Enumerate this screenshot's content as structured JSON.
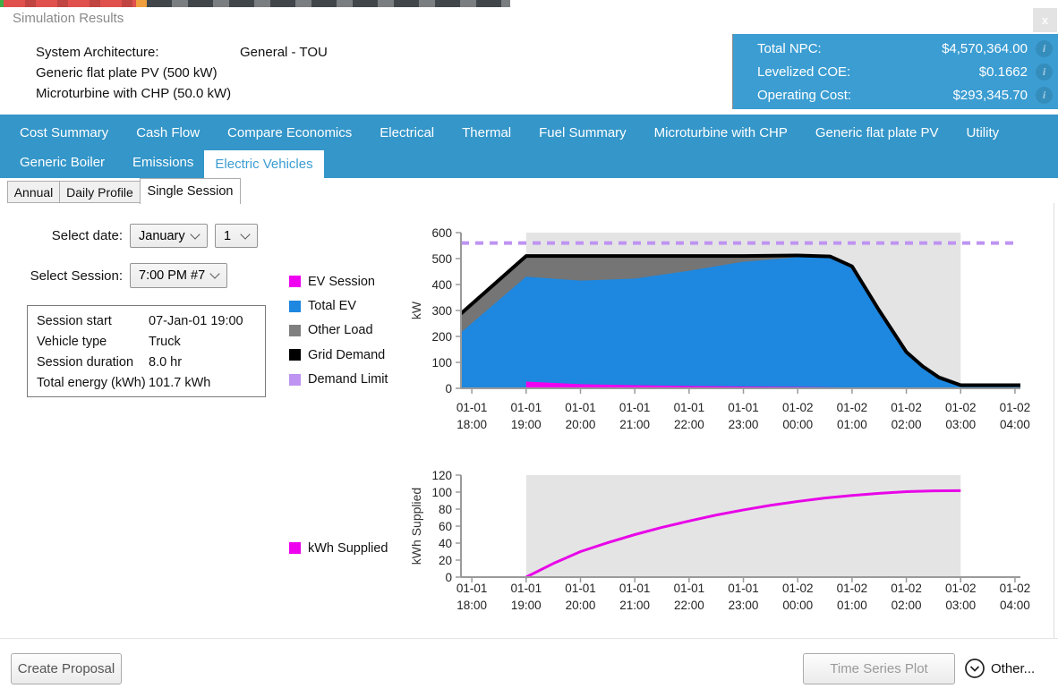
{
  "titlebar": {
    "title": "Simulation Results",
    "close_label": "x"
  },
  "header": {
    "architecture_label": "System Architecture:",
    "architecture_value": "General - TOU",
    "component_1": "Generic flat plate PV (500 kW)",
    "component_2": "Microturbine with CHP (50.0 kW)",
    "metrics": [
      {
        "label": "Total NPC:",
        "value": "$4,570,364.00",
        "icon": "info-icon"
      },
      {
        "label": "Levelized COE:",
        "value": "$0.1662",
        "icon": "info-icon"
      },
      {
        "label": "Operating Cost:",
        "value": "$293,345.70",
        "icon": "info-icon"
      }
    ]
  },
  "tabs": {
    "row1": [
      "Cost Summary",
      "Cash Flow",
      "Compare Economics",
      "Electrical",
      "Thermal",
      "Fuel Summary",
      "Microturbine with CHP",
      "Generic flat plate PV",
      "Utility"
    ],
    "row2": [
      "Generic Boiler",
      "Emissions"
    ],
    "selected": "Electric Vehicles"
  },
  "subtabs": {
    "annual": "Annual",
    "daily_profile": "Daily Profile",
    "selected": "Single Session"
  },
  "controls": {
    "date_label": "Select date:",
    "month_value": "January",
    "day_value": "1",
    "session_label": "Select Session:",
    "session_value": "7:00 PM #7"
  },
  "session_info": {
    "rows": [
      {
        "label": "Session start",
        "value": "07-Jan-01 19:00"
      },
      {
        "label": "Vehicle type",
        "value": "Truck"
      },
      {
        "label": "Session duration",
        "value": "8.0 hr"
      },
      {
        "label": "Total energy (kWh)",
        "value": "101.7 kWh"
      }
    ]
  },
  "legend_power": [
    {
      "label": "EV Session",
      "color": "#F000F0"
    },
    {
      "label": "Total EV",
      "color": "#1E87DF"
    },
    {
      "label": "Other Load",
      "color": "#7F7F7F"
    },
    {
      "label": "Grid Demand",
      "color": "#000000"
    },
    {
      "label": "Demand Limit",
      "color": "#BE93F2"
    }
  ],
  "legend_energy": [
    {
      "label": "kWh Supplied",
      "color": "#EE00EE"
    }
  ],
  "footer": {
    "create_proposal": "Create Proposal",
    "time_series_plot": "Time Series Plot",
    "other": "Other..."
  },
  "colors": {
    "accent_blue": "#3496c9",
    "metrics_blue": "#3b9dd2",
    "chart_blue": "#1E87DF",
    "magenta": "#F000F0",
    "gray_load": "#757575",
    "demand_limit_purple": "#BE93F2",
    "session_shading": "#E4E4E4"
  },
  "chart_data": [
    {
      "dom_id": "chart-power",
      "type": "area",
      "ylabel": "kW",
      "ylim": [
        0,
        600
      ],
      "yticks": [
        0,
        100,
        200,
        300,
        400,
        500,
        600
      ],
      "xlim": [
        17.8,
        28.1
      ],
      "xticks": [
        {
          "h": 18,
          "date": "01-01",
          "time": "18:00"
        },
        {
          "h": 19,
          "date": "01-01",
          "time": "19:00"
        },
        {
          "h": 20,
          "date": "01-01",
          "time": "20:00"
        },
        {
          "h": 21,
          "date": "01-01",
          "time": "21:00"
        },
        {
          "h": 22,
          "date": "01-01",
          "time": "22:00"
        },
        {
          "h": 23,
          "date": "01-01",
          "time": "23:00"
        },
        {
          "h": 24,
          "date": "01-02",
          "time": "00:00"
        },
        {
          "h": 25,
          "date": "01-02",
          "time": "01:00"
        },
        {
          "h": 26,
          "date": "01-02",
          "time": "02:00"
        },
        {
          "h": 27,
          "date": "01-02",
          "time": "03:00"
        },
        {
          "h": 28,
          "date": "01-02",
          "time": "04:00"
        }
      ],
      "session_region": {
        "from": 19,
        "to": 27,
        "color": "#E4E4E4"
      },
      "series": [
        {
          "name": "Other Load",
          "kind": "area",
          "color": "#757575",
          "points": [
            [
              17.8,
              288
            ],
            [
              19,
              510
            ],
            [
              23,
              510
            ],
            [
              24,
              512
            ],
            [
              24.6,
              508
            ],
            [
              25,
              470
            ],
            [
              25.5,
              300
            ],
            [
              26,
              140
            ],
            [
              26.3,
              85
            ],
            [
              26.6,
              42
            ],
            [
              27,
              12
            ],
            [
              28.1,
              12
            ]
          ]
        },
        {
          "name": "Total EV",
          "kind": "area",
          "color": "#1E87DF",
          "points": [
            [
              17.8,
              215
            ],
            [
              19,
              430
            ],
            [
              20,
              415
            ],
            [
              21,
              423
            ],
            [
              22,
              453
            ],
            [
              23,
              488
            ],
            [
              24,
              505
            ],
            [
              24.5,
              510
            ],
            [
              25,
              466
            ],
            [
              25.5,
              298
            ],
            [
              26,
              138
            ],
            [
              26.3,
              83
            ],
            [
              26.6,
              38
            ],
            [
              27,
              8
            ],
            [
              28.1,
              8
            ]
          ]
        },
        {
          "name": "EV Session",
          "kind": "area",
          "color": "#F000F0",
          "points": [
            [
              19,
              0
            ],
            [
              19,
              26
            ],
            [
              20,
              16
            ],
            [
              21,
              12
            ],
            [
              22,
              9
            ],
            [
              23,
              7
            ],
            [
              24,
              5
            ],
            [
              25,
              3
            ],
            [
              26,
              1.5
            ],
            [
              27,
              0.3
            ]
          ]
        },
        {
          "name": "Grid Demand",
          "kind": "line",
          "color": "#000000",
          "width": 4,
          "points": [
            [
              17.8,
              288
            ],
            [
              19,
              510
            ],
            [
              23,
              510
            ],
            [
              24,
              512
            ],
            [
              24.6,
              508
            ],
            [
              25,
              470
            ],
            [
              25.5,
              300
            ],
            [
              26,
              140
            ],
            [
              26.3,
              85
            ],
            [
              26.6,
              42
            ],
            [
              27,
              12
            ],
            [
              28.1,
              12
            ]
          ]
        },
        {
          "name": "Demand Limit",
          "kind": "hline",
          "color": "#BE93F2",
          "width": 4,
          "dash": "9 7",
          "value": 560
        }
      ]
    },
    {
      "dom_id": "chart-energy",
      "type": "line",
      "ylabel": "kWh Supplied",
      "ylim": [
        0,
        120
      ],
      "yticks": [
        0,
        20,
        40,
        60,
        80,
        100,
        120
      ],
      "xlim": [
        17.8,
        28.1
      ],
      "xticks": [
        {
          "h": 18,
          "date": "01-01",
          "time": "18:00"
        },
        {
          "h": 19,
          "date": "01-01",
          "time": "19:00"
        },
        {
          "h": 20,
          "date": "01-01",
          "time": "20:00"
        },
        {
          "h": 21,
          "date": "01-01",
          "time": "21:00"
        },
        {
          "h": 22,
          "date": "01-01",
          "time": "22:00"
        },
        {
          "h": 23,
          "date": "01-01",
          "time": "23:00"
        },
        {
          "h": 24,
          "date": "01-02",
          "time": "00:00"
        },
        {
          "h": 25,
          "date": "01-02",
          "time": "01:00"
        },
        {
          "h": 26,
          "date": "01-02",
          "time": "02:00"
        },
        {
          "h": 27,
          "date": "01-02",
          "time": "03:00"
        },
        {
          "h": 28,
          "date": "01-02",
          "time": "04:00"
        }
      ],
      "session_region": {
        "from": 19,
        "to": 27,
        "color": "#E4E4E4"
      },
      "series": [
        {
          "name": "kWh Supplied",
          "kind": "line",
          "color": "#E804E8",
          "width": 3,
          "points": [
            [
              19,
              0
            ],
            [
              19.5,
              16
            ],
            [
              20,
              30
            ],
            [
              20.5,
              40.5
            ],
            [
              21,
              50
            ],
            [
              21.5,
              58.5
            ],
            [
              22,
              66
            ],
            [
              22.5,
              73
            ],
            [
              23,
              79
            ],
            [
              23.5,
              84.5
            ],
            [
              24,
              89
            ],
            [
              24.5,
              93
            ],
            [
              25,
              96
            ],
            [
              25.5,
              98.5
            ],
            [
              26,
              100.5
            ],
            [
              26.5,
              101.4
            ],
            [
              27,
              101.7
            ]
          ]
        }
      ]
    }
  ]
}
